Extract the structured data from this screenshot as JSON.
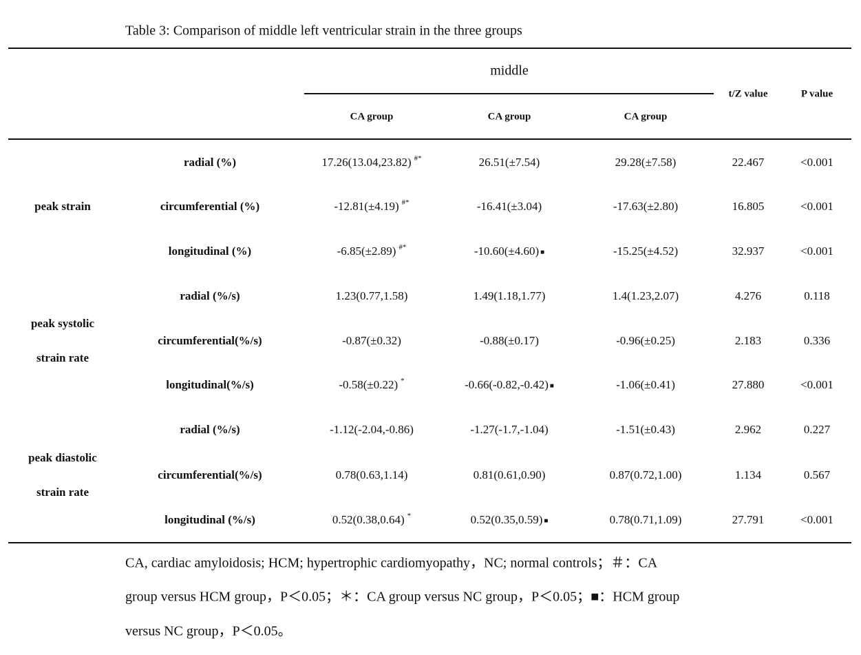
{
  "title": "Table 3: Comparison of middle left ventricular strain in the three groups",
  "header": {
    "span": "middle",
    "groups": [
      "CA group",
      "CA group",
      "CA group"
    ],
    "t": "t/Z value",
    "p": "P value"
  },
  "group_labels": [
    {
      "lines": [
        "peak strain"
      ]
    },
    {
      "lines": [
        "peak systolic",
        "strain rate"
      ]
    },
    {
      "lines": [
        "peak diastolic",
        "strain rate"
      ]
    }
  ],
  "rows": [
    {
      "param": "radial (%)",
      "cells": [
        {
          "v": "17.26(13.04,23.82)",
          "m": "#*"
        },
        {
          "v": "26.51(±7.54)",
          "m": ""
        },
        {
          "v": "29.28(±7.58)",
          "m": ""
        }
      ],
      "t": "22.467",
      "p": "<0.001"
    },
    {
      "param": "circumferential (%)",
      "cells": [
        {
          "v": "-12.81(±4.19)",
          "m": "#*"
        },
        {
          "v": "-16.41(±3.04)",
          "m": ""
        },
        {
          "v": "-17.63(±2.80)",
          "m": ""
        }
      ],
      "t": "16.805",
      "p": "<0.001"
    },
    {
      "param": "longitudinal (%)",
      "cells": [
        {
          "v": "-6.85(±2.89)",
          "m": "#*"
        },
        {
          "v": "-10.60(±4.60)",
          "m": "■"
        },
        {
          "v": "-15.25(±4.52)",
          "m": ""
        }
      ],
      "t": "32.937",
      "p": "<0.001"
    },
    {
      "param": "radial (%/s)",
      "cells": [
        {
          "v": "1.23(0.77,1.58)",
          "m": ""
        },
        {
          "v": "1.49(1.18,1.77)",
          "m": ""
        },
        {
          "v": "1.4(1.23,2.07)",
          "m": ""
        }
      ],
      "t": "4.276",
      "p": "0.118"
    },
    {
      "param": "circumferential(%/s)",
      "cells": [
        {
          "v": "-0.87(±0.32)",
          "m": ""
        },
        {
          "v": "-0.88(±0.17)",
          "m": ""
        },
        {
          "v": "-0.96(±0.25)",
          "m": ""
        }
      ],
      "t": "2.183",
      "p": "0.336"
    },
    {
      "param": "longitudinal(%/s)",
      "cells": [
        {
          "v": "-0.58(±0.22)",
          "m": "*"
        },
        {
          "v": "-0.66(-0.82,-0.42)",
          "m": "■"
        },
        {
          "v": "-1.06(±0.41)",
          "m": ""
        }
      ],
      "t": "27.880",
      "p": "<0.001"
    },
    {
      "param": "radial (%/s)",
      "cells": [
        {
          "v": "-1.12(-2.04,-0.86)",
          "m": ""
        },
        {
          "v": "-1.27(-1.7,-1.04)",
          "m": ""
        },
        {
          "v": "-1.51(±0.43)",
          "m": ""
        }
      ],
      "t": "2.962",
      "p": "0.227"
    },
    {
      "param": "circumferential(%/s)",
      "cells": [
        {
          "v": "0.78(0.63,1.14)",
          "m": ""
        },
        {
          "v": "0.81(0.61,0.90)",
          "m": ""
        },
        {
          "v": "0.87(0.72,1.00)",
          "m": ""
        }
      ],
      "t": "1.134",
      "p": "0.567"
    },
    {
      "param": "longitudinal (%/s)",
      "cells": [
        {
          "v": "0.52(0.38,0.64)",
          "m": "*"
        },
        {
          "v": "0.52(0.35,0.59)",
          "m": "■"
        },
        {
          "v": "0.78(0.71,1.09)",
          "m": ""
        }
      ],
      "t": "27.791",
      "p": "<0.001"
    }
  ],
  "notes": [
    "CA, cardiac amyloidosis; HCM; hypertrophic cardiomyopathy，NC; normal controls；＃：CA",
    "group versus HCM group，P＜0.05；＊：CA group versus NC group，P＜0.05；■：HCM group",
    "versus NC group，P＜0.05。"
  ]
}
